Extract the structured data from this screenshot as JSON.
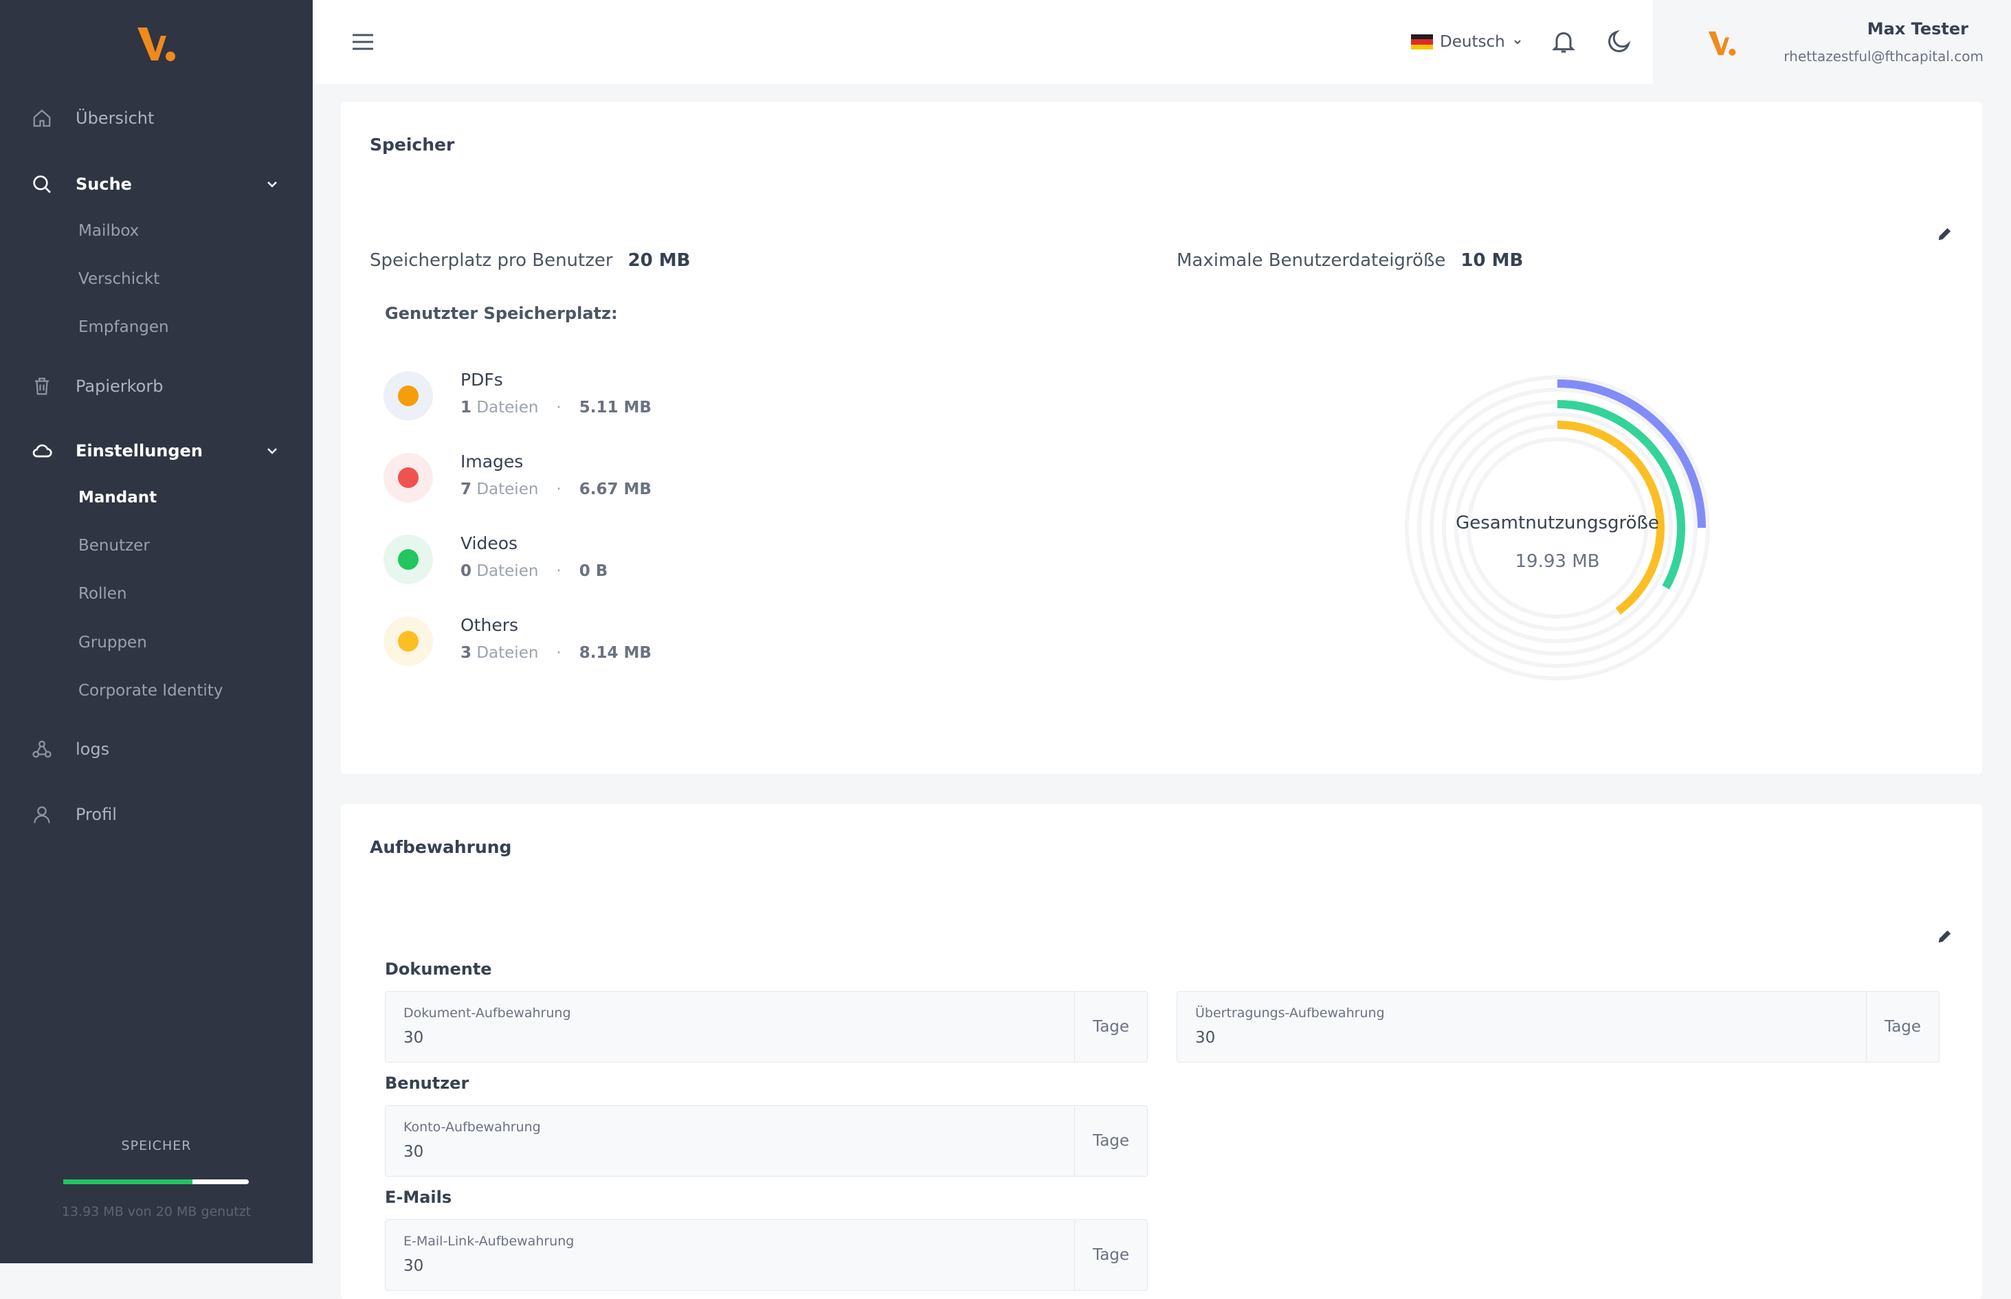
{
  "sidebar": {
    "items": [
      {
        "label": "Übersicht"
      },
      {
        "label": "Suche"
      },
      {
        "label": "Papierkorb"
      },
      {
        "label": "Einstellungen"
      },
      {
        "label": "logs"
      },
      {
        "label": "Profil"
      }
    ],
    "suche_sub": [
      {
        "label": "Mailbox"
      },
      {
        "label": "Verschickt"
      },
      {
        "label": "Empfangen"
      }
    ],
    "settings_sub": [
      {
        "label": "Mandant"
      },
      {
        "label": "Benutzer"
      },
      {
        "label": "Rollen"
      },
      {
        "label": "Gruppen"
      },
      {
        "label": "Corporate Identity"
      }
    ],
    "storage": {
      "title": "SPEICHER",
      "used_fraction": 0.6965,
      "text": "13.93 MB von 20 MB genutzt"
    }
  },
  "topbar": {
    "language": "Deutsch",
    "user_name": "Max Tester",
    "user_email": "rhettazestful@fthcapital.com"
  },
  "storage_card": {
    "title": "Speicher",
    "per_user_label": "Speicherplatz pro Benutzer",
    "per_user_value": "20 MB",
    "max_file_label": "Maximale Benutzerdateigröße",
    "max_file_value": "10 MB",
    "used_label": "Genutzter Speicherplatz:",
    "files": [
      {
        "name": "PDFs",
        "count": "1",
        "unit": "Dateien",
        "size": "5.11 MB",
        "color": "#f59e0b",
        "bg": "#eef0f8"
      },
      {
        "name": "Images",
        "count": "7",
        "unit": "Dateien",
        "size": "6.67 MB",
        "color": "#ef5350",
        "bg": "#fdecec"
      },
      {
        "name": "Videos",
        "count": "0",
        "unit": "Dateien",
        "size": "0 B",
        "color": "#22c55e",
        "bg": "#e7f7ee"
      },
      {
        "name": "Others",
        "count": "3",
        "unit": "Dateien",
        "size": "8.14 MB",
        "color": "#fbbf24",
        "bg": "#fdf6e3"
      }
    ],
    "donut": {
      "center_label": "Gesamtnutzungsgröße",
      "center_value": "19.93 MB",
      "rings": [
        {
          "color": "#818cf8",
          "fraction": 0.25
        },
        {
          "color": "#34d399",
          "fraction": 0.33
        },
        {
          "color": "#fbbf24",
          "fraction": 0.4
        }
      ]
    }
  },
  "retention_card": {
    "title": "Aufbewahrung",
    "groups": {
      "dokumente": "Dokumente",
      "benutzer": "Benutzer",
      "emails": "E-Mails"
    },
    "fields": {
      "dokument": {
        "label": "Dokument-Aufbewahrung",
        "value": "30",
        "suffix": "Tage"
      },
      "uebertragung": {
        "label": "Übertragungs-Aufbewahrung",
        "value": "30",
        "suffix": "Tage"
      },
      "konto": {
        "label": "Konto-Aufbewahrung",
        "value": "30",
        "suffix": "Tage"
      },
      "email_link": {
        "label": "E-Mail-Link-Aufbewahrung",
        "value": "30",
        "suffix": "Tage"
      }
    }
  }
}
